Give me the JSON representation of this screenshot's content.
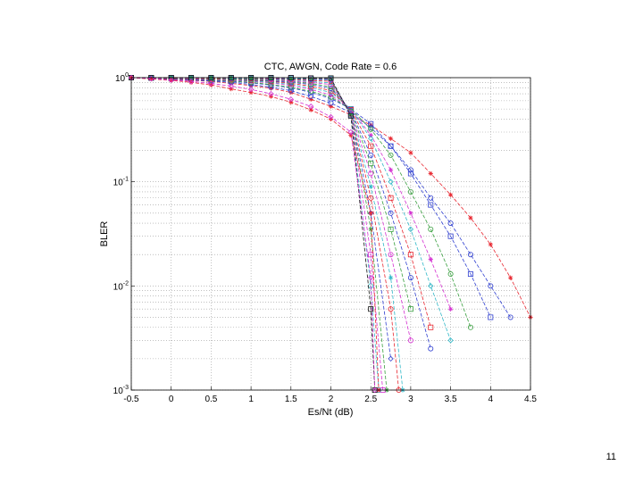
{
  "page": {
    "number": "11"
  },
  "chart_data": {
    "type": "line",
    "title": "CTC, AWGN, Code Rate = 0.6",
    "xlabel": "Es/Nt (dB)",
    "ylabel": "BLER",
    "xlim": [
      -0.5,
      4.5
    ],
    "ylim": [
      0.001,
      1
    ],
    "yscale": "log",
    "grid": true,
    "x_ticks": [
      "-0.5",
      "0",
      "0.5",
      "1",
      "1.5",
      "2",
      "2.5",
      "3",
      "3.5",
      "4",
      "4.5"
    ],
    "y_ticks": [
      {
        "value": 1,
        "mantissa": "10",
        "exp": "0"
      },
      {
        "value": 0.1,
        "mantissa": "10",
        "exp": "-1"
      },
      {
        "value": 0.01,
        "mantissa": "10",
        "exp": "-2"
      },
      {
        "value": 0.001,
        "mantissa": "10",
        "exp": "-3"
      }
    ],
    "series": [
      {
        "color": "#e8262f",
        "marker": "star",
        "x": [
          -0.5,
          -0.25,
          0,
          0.25,
          0.5,
          0.75,
          1,
          1.25,
          1.5,
          1.75,
          2,
          2.25,
          2.5,
          2.75,
          3,
          3.25,
          3.5,
          3.75,
          4,
          4.25,
          4.5
        ],
        "y": [
          1,
          0.98,
          0.96,
          0.94,
          0.92,
          0.88,
          0.84,
          0.79,
          0.72,
          0.62,
          0.53,
          0.44,
          0.35,
          0.26,
          0.19,
          0.12,
          0.075,
          0.045,
          0.025,
          0.012,
          0.005
        ]
      },
      {
        "color": "#2f3fd0",
        "marker": "circle",
        "x": [
          -0.5,
          -0.25,
          0,
          0.25,
          0.5,
          0.75,
          1,
          1.25,
          1.5,
          1.75,
          2,
          2.25,
          2.5,
          2.75,
          3,
          3.25,
          3.5,
          3.75,
          4,
          4.25
        ],
        "y": [
          1,
          0.99,
          0.97,
          0.95,
          0.93,
          0.9,
          0.86,
          0.81,
          0.75,
          0.66,
          0.57,
          0.46,
          0.33,
          0.22,
          0.13,
          0.07,
          0.04,
          0.02,
          0.01,
          0.005
        ]
      },
      {
        "color": "#2f3fd0",
        "marker": "square",
        "x": [
          -0.5,
          -0.25,
          0,
          0.25,
          0.5,
          0.75,
          1,
          1.25,
          1.5,
          1.75,
          2,
          2.25,
          2.5,
          2.75,
          3,
          3.25,
          3.5,
          3.75,
          4
        ],
        "y": [
          1,
          0.99,
          0.98,
          0.96,
          0.94,
          0.92,
          0.89,
          0.85,
          0.8,
          0.72,
          0.63,
          0.5,
          0.36,
          0.22,
          0.12,
          0.06,
          0.03,
          0.013,
          0.005
        ]
      },
      {
        "color": "#3aa040",
        "marker": "circle",
        "x": [
          -0.5,
          -0.25,
          0,
          0.25,
          0.5,
          0.75,
          1,
          1.25,
          1.5,
          1.75,
          2,
          2.25,
          2.5,
          2.75,
          3,
          3.25,
          3.5,
          3.75
        ],
        "y": [
          1,
          0.99,
          0.98,
          0.97,
          0.95,
          0.93,
          0.9,
          0.86,
          0.81,
          0.74,
          0.65,
          0.5,
          0.32,
          0.18,
          0.08,
          0.035,
          0.013,
          0.004
        ]
      },
      {
        "color": "#d42fd0",
        "marker": "star",
        "x": [
          -0.5,
          -0.25,
          0,
          0.25,
          0.5,
          0.75,
          1,
          1.25,
          1.5,
          1.75,
          2,
          2.25,
          2.5,
          2.75,
          3,
          3.25,
          3.5
        ],
        "y": [
          1,
          0.99,
          0.99,
          0.97,
          0.96,
          0.94,
          0.92,
          0.89,
          0.84,
          0.77,
          0.68,
          0.5,
          0.28,
          0.13,
          0.05,
          0.018,
          0.006
        ]
      },
      {
        "color": "#30b8c8",
        "marker": "diamond",
        "x": [
          -0.5,
          -0.25,
          0,
          0.25,
          0.5,
          0.75,
          1,
          1.25,
          1.5,
          1.75,
          2,
          2.25,
          2.5,
          2.75,
          3,
          3.25,
          3.5
        ],
        "y": [
          1,
          1,
          0.99,
          0.98,
          0.97,
          0.95,
          0.93,
          0.9,
          0.86,
          0.8,
          0.72,
          0.5,
          0.26,
          0.1,
          0.035,
          0.01,
          0.003
        ]
      },
      {
        "color": "#e8262f",
        "marker": "square",
        "x": [
          -0.5,
          -0.25,
          0,
          0.25,
          0.5,
          0.75,
          1,
          1.25,
          1.5,
          1.75,
          2,
          2.25,
          2.5,
          2.75,
          3,
          3.25
        ],
        "y": [
          1,
          1,
          0.99,
          0.98,
          0.97,
          0.96,
          0.94,
          0.92,
          0.88,
          0.83,
          0.75,
          0.49,
          0.22,
          0.07,
          0.02,
          0.004
        ]
      },
      {
        "color": "#2f3fd0",
        "marker": "circle",
        "x": [
          -0.5,
          -0.25,
          0,
          0.25,
          0.5,
          0.75,
          1,
          1.25,
          1.5,
          1.75,
          2,
          2.25,
          2.5,
          2.75,
          3,
          3.25
        ],
        "y": [
          1,
          1,
          1,
          0.99,
          0.98,
          0.97,
          0.95,
          0.93,
          0.9,
          0.86,
          0.79,
          0.48,
          0.18,
          0.05,
          0.012,
          0.0025
        ]
      },
      {
        "color": "#3aa040",
        "marker": "square",
        "x": [
          -0.5,
          -0.25,
          0,
          0.25,
          0.5,
          0.75,
          1,
          1.25,
          1.5,
          1.75,
          2,
          2.25,
          2.5,
          2.75,
          3
        ],
        "y": [
          1,
          1,
          1,
          0.99,
          0.98,
          0.97,
          0.96,
          0.94,
          0.92,
          0.88,
          0.82,
          0.47,
          0.15,
          0.035,
          0.006
        ]
      },
      {
        "color": "#d42fd0",
        "marker": "circle",
        "x": [
          -0.5,
          -0.25,
          0,
          0.25,
          0.5,
          0.75,
          1,
          1.25,
          1.5,
          1.75,
          2,
          2.25,
          2.5,
          2.75,
          3
        ],
        "y": [
          1,
          1,
          1,
          0.99,
          0.99,
          0.98,
          0.97,
          0.95,
          0.93,
          0.9,
          0.86,
          0.46,
          0.12,
          0.02,
          0.003
        ]
      },
      {
        "color": "#30b8c8",
        "marker": "star",
        "x": [
          -0.5,
          -0.25,
          0,
          0.25,
          0.5,
          0.75,
          1,
          1.25,
          1.5,
          1.75,
          2,
          2.25,
          2.5,
          2.75,
          2.9
        ],
        "y": [
          1,
          1,
          1,
          1,
          0.99,
          0.98,
          0.97,
          0.96,
          0.95,
          0.92,
          0.89,
          0.46,
          0.09,
          0.012,
          0.001
        ]
      },
      {
        "color": "#e8262f",
        "marker": "circle",
        "x": [
          -0.5,
          -0.25,
          0,
          0.25,
          0.5,
          0.75,
          1,
          1.25,
          1.5,
          1.75,
          2,
          2.25,
          2.5,
          2.75,
          2.85
        ],
        "y": [
          1,
          1,
          1,
          1,
          0.99,
          0.99,
          0.98,
          0.97,
          0.96,
          0.94,
          0.92,
          0.45,
          0.07,
          0.006,
          0.001
        ]
      },
      {
        "color": "#2f3fd0",
        "marker": "diamond",
        "x": [
          -0.5,
          -0.25,
          0,
          0.25,
          0.5,
          0.75,
          1,
          1.25,
          1.5,
          1.75,
          2,
          2.25,
          2.5,
          2.75
        ],
        "y": [
          1,
          1,
          1,
          1,
          1,
          0.99,
          0.99,
          0.98,
          0.97,
          0.96,
          0.95,
          0.45,
          0.05,
          0.002
        ]
      },
      {
        "color": "#3aa040",
        "marker": "star",
        "x": [
          -0.5,
          -0.25,
          0,
          0.25,
          0.5,
          0.75,
          1,
          1.25,
          1.5,
          1.75,
          2,
          2.25,
          2.5,
          2.7
        ],
        "y": [
          1,
          1,
          1,
          1,
          1,
          1,
          0.99,
          0.99,
          0.98,
          0.97,
          0.96,
          0.44,
          0.035,
          0.001
        ]
      },
      {
        "color": "#d42fd0",
        "marker": "square",
        "x": [
          -0.5,
          -0.25,
          0,
          0.25,
          0.5,
          0.75,
          1,
          1.25,
          1.5,
          1.75,
          2,
          2.25,
          2.5,
          2.65
        ],
        "y": [
          1,
          1,
          1,
          1,
          1,
          1,
          1,
          0.99,
          0.99,
          0.98,
          0.97,
          0.44,
          0.02,
          0.001
        ]
      },
      {
        "color": "#30b8c8",
        "marker": "circle",
        "x": [
          -0.5,
          -0.25,
          0,
          0.25,
          0.5,
          0.75,
          1,
          1.25,
          1.5,
          1.75,
          2,
          2.25,
          2.5,
          2.6
        ],
        "y": [
          1,
          1,
          1,
          1,
          1,
          1,
          1,
          1,
          0.99,
          0.99,
          0.98,
          0.43,
          0.01,
          0.001
        ]
      },
      {
        "color": "#111111",
        "marker": "square",
        "x": [
          -0.5,
          -0.25,
          0,
          0.25,
          0.5,
          0.75,
          1,
          1.25,
          1.5,
          1.75,
          2,
          2.25,
          2.5,
          2.55
        ],
        "y": [
          1,
          1,
          1,
          1,
          1,
          1,
          1,
          1,
          1,
          0.99,
          0.99,
          0.43,
          0.006,
          0.001
        ]
      },
      {
        "color": "#e8262f",
        "marker": "star",
        "x": [
          -0.5,
          -0.25,
          0,
          0.25,
          0.5,
          0.75,
          1,
          1.25,
          1.5,
          1.75,
          2,
          2.25,
          2.5,
          2.6
        ],
        "y": [
          1,
          0.97,
          0.94,
          0.9,
          0.85,
          0.78,
          0.72,
          0.66,
          0.58,
          0.49,
          0.4,
          0.28,
          0.05,
          0.001
        ]
      },
      {
        "color": "#d42fd0",
        "marker": "diamond",
        "x": [
          -0.5,
          -0.25,
          0,
          0.25,
          0.5,
          0.75,
          1,
          1.25,
          1.5,
          1.75,
          2,
          2.25,
          2.5,
          2.55
        ],
        "y": [
          1,
          0.98,
          0.95,
          0.92,
          0.88,
          0.83,
          0.77,
          0.7,
          0.62,
          0.53,
          0.42,
          0.3,
          0.012,
          0.001
        ]
      }
    ]
  }
}
